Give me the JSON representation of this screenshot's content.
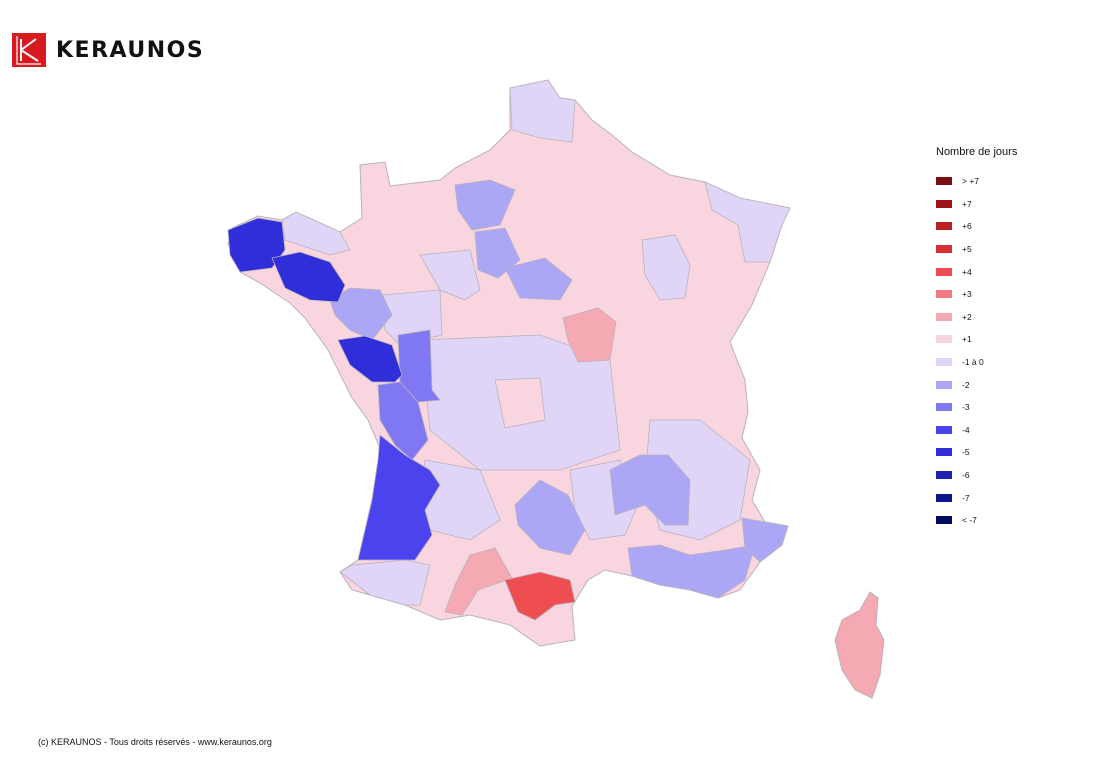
{
  "brand": {
    "name": "KERAUNOS",
    "logo_letter": "K",
    "logo_color": "#d71920"
  },
  "legend": {
    "title": "Nombre de jours",
    "items": [
      {
        "label": "> +7",
        "color": "#7a0c14"
      },
      {
        "label": "+7",
        "color": "#9e1519"
      },
      {
        "label": "+6",
        "color": "#c01f23"
      },
      {
        "label": "+5",
        "color": "#d93033"
      },
      {
        "label": "+4",
        "color": "#ee4d52"
      },
      {
        "label": "+3",
        "color": "#f07d86"
      },
      {
        "label": "+2",
        "color": "#f5a9b2"
      },
      {
        "label": "+1",
        "color": "#f9d5df"
      },
      {
        "label": "-1 à 0",
        "color": "#e0d5f6"
      },
      {
        "label": "-2",
        "color": "#aca6f6"
      },
      {
        "label": "-3",
        "color": "#7f78f2"
      },
      {
        "label": "-4",
        "color": "#4a43ee"
      },
      {
        "label": "-5",
        "color": "#2f2ed9"
      },
      {
        "label": "-6",
        "color": "#1d23b0"
      },
      {
        "label": "-7",
        "color": "#10148c"
      },
      {
        "label": "< -7",
        "color": "#08095e"
      }
    ]
  },
  "map": {
    "base_color": "#f9d5df",
    "border_color": "#b9b2bd",
    "highlighted_regions": [
      {
        "name": "Finistère",
        "class": "-5"
      },
      {
        "name": "Morbihan",
        "class": "-5"
      },
      {
        "name": "Vendée",
        "class": "-5"
      },
      {
        "name": "Gironde",
        "class": "-4"
      },
      {
        "name": "Landes",
        "class": "-4"
      },
      {
        "name": "Charente-Maritime",
        "class": "-3"
      },
      {
        "name": "Deux-Sèvres",
        "class": "-3"
      },
      {
        "name": "Loire-Atlantique",
        "class": "-3"
      },
      {
        "name": "Aisne",
        "class": "-2"
      },
      {
        "name": "Marne",
        "class": "-2"
      },
      {
        "name": "Aube",
        "class": "-2"
      },
      {
        "name": "Aveyron",
        "class": "-2"
      },
      {
        "name": "Isère",
        "class": "-2"
      },
      {
        "name": "Drôme",
        "class": "-2"
      },
      {
        "name": "Var",
        "class": "-2"
      },
      {
        "name": "Bouches-du-Rhône",
        "class": "-2"
      },
      {
        "name": "Alpes-Maritimes",
        "class": "-2"
      },
      {
        "name": "Aude",
        "class": "+4"
      },
      {
        "name": "Nièvre",
        "class": "+2"
      },
      {
        "name": "Haute-Garonne",
        "class": "+2"
      },
      {
        "name": "Corse",
        "class": "+2"
      }
    ]
  },
  "footer": {
    "text": "(c) KERAUNOS - Tous droits réservés - www.keraunos.org"
  }
}
